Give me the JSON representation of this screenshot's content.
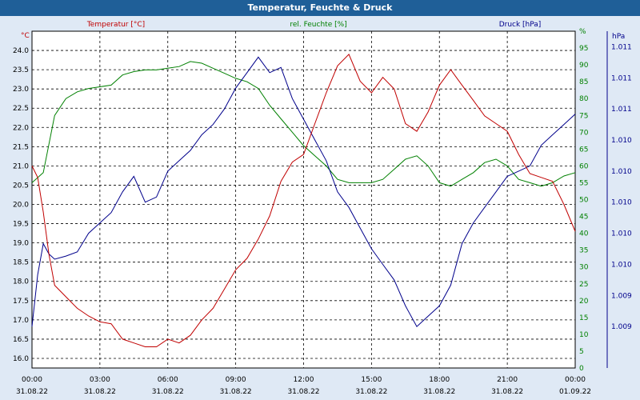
{
  "window": {
    "title": "Temperatur, Feuchte & Druck"
  },
  "colors": {
    "temp": "#c00000",
    "humidity": "#008000",
    "pressure": "#00008b",
    "grid": "#000000",
    "background": "#ffffff"
  },
  "chart_data": {
    "type": "line",
    "title": "Temperatur, Feuchte & Druck",
    "grid": true,
    "x_range": [
      "31.08.22 00:00",
      "01.09.22 00:00"
    ],
    "x_ticks": [
      {
        "time": "00:00",
        "date": "31.08.22"
      },
      {
        "time": "03:00",
        "date": "31.08.22"
      },
      {
        "time": "06:00",
        "date": "31.08.22"
      },
      {
        "time": "09:00",
        "date": "31.08.22"
      },
      {
        "time": "12:00",
        "date": "31.08.22"
      },
      {
        "time": "15:00",
        "date": "31.08.22"
      },
      {
        "time": "18:00",
        "date": "31.08.22"
      },
      {
        "time": "21:00",
        "date": "31.08.22"
      },
      {
        "time": "00:00",
        "date": "01.09.22"
      }
    ],
    "axes": {
      "temperature": {
        "unit": "°C",
        "min": 15.75,
        "max": 24.5,
        "ticks": [
          "16.0",
          "16.5",
          "17.0",
          "17.5",
          "18.0",
          "18.5",
          "19.0",
          "19.5",
          "20.0",
          "20.5",
          "21.0",
          "21.5",
          "22.0",
          "22.5",
          "23.0",
          "23.5",
          "24.0"
        ]
      },
      "humidity": {
        "unit": "%",
        "min": 0,
        "max": 100,
        "ticks": [
          "0",
          "5",
          "10",
          "15",
          "20",
          "25",
          "30",
          "35",
          "40",
          "45",
          "50",
          "55",
          "60",
          "65",
          "70",
          "75",
          "80",
          "85",
          "90",
          "95",
          "%"
        ]
      },
      "pressure": {
        "unit": "hPa",
        "min": 1008.6,
        "max": 1011.85,
        "ticks": [
          {
            "value": 1009.0,
            "label": "1.009"
          },
          {
            "value": 1009.3,
            "label": "1.009"
          },
          {
            "value": 1009.6,
            "label": "1.010"
          },
          {
            "value": 1009.9,
            "label": "1.010"
          },
          {
            "value": 1010.2,
            "label": "1.010"
          },
          {
            "value": 1010.5,
            "label": "1.010"
          },
          {
            "value": 1010.8,
            "label": "1.010"
          },
          {
            "value": 1011.1,
            "label": "1.011"
          },
          {
            "value": 1011.4,
            "label": "1.011"
          },
          {
            "value": 1011.7,
            "label": "1.011"
          }
        ]
      }
    },
    "series": [
      {
        "name": "Temperatur [°C]",
        "axis": "temperature",
        "x": [
          0,
          0.25,
          0.5,
          0.75,
          1,
          1.5,
          2,
          2.5,
          3,
          3.5,
          4,
          4.5,
          5,
          5.5,
          6,
          6.5,
          7,
          7.5,
          8,
          8.5,
          9,
          9.5,
          10,
          10.5,
          11,
          11.5,
          12,
          12.5,
          13,
          13.5,
          14,
          14.5,
          15,
          15.5,
          16,
          16.5,
          17,
          17.5,
          18,
          18.5,
          19,
          19.5,
          20,
          20.5,
          21,
          21.5,
          22,
          22.5,
          23,
          23.5,
          24
        ],
        "y": [
          21.0,
          20.7,
          19.8,
          18.7,
          17.9,
          17.6,
          17.3,
          17.1,
          16.95,
          16.9,
          16.5,
          16.4,
          16.3,
          16.3,
          16.5,
          16.4,
          16.6,
          17.0,
          17.3,
          17.8,
          18.3,
          18.6,
          19.1,
          19.7,
          20.6,
          21.1,
          21.3,
          22.1,
          22.9,
          23.6,
          23.9,
          23.2,
          22.9,
          23.3,
          23.0,
          22.1,
          21.9,
          22.4,
          23.1,
          23.5,
          23.1,
          22.7,
          22.3,
          22.1,
          21.9,
          21.3,
          20.8,
          20.7,
          20.6,
          20.0,
          19.3
        ]
      },
      {
        "name": "rel. Feuchte [%]",
        "axis": "humidity",
        "x": [
          0,
          0.5,
          1,
          1.5,
          2,
          2.5,
          3,
          3.5,
          4,
          4.5,
          5,
          5.5,
          6,
          6.5,
          7,
          7.5,
          8,
          8.5,
          9,
          9.5,
          10,
          10.5,
          11,
          11.5,
          12,
          12.5,
          13,
          13.5,
          14,
          14.5,
          15,
          15.5,
          16,
          16.5,
          17,
          17.5,
          18,
          18.5,
          19,
          19.5,
          20,
          20.5,
          21,
          21.5,
          22,
          22.5,
          23,
          23.5,
          24
        ],
        "y": [
          55,
          58,
          75,
          80,
          82,
          83,
          83.5,
          84,
          87,
          88,
          88.5,
          88.5,
          89,
          89.5,
          91,
          90.5,
          89,
          87.5,
          86,
          85,
          83,
          78,
          74,
          70,
          66,
          63,
          60,
          56,
          55,
          55,
          55,
          56,
          59,
          62,
          63,
          60,
          55,
          54,
          56,
          58,
          61,
          62,
          60,
          56,
          55,
          54,
          55,
          57,
          58
        ]
      },
      {
        "name": "Druck [hPa]",
        "axis": "pressure",
        "x": [
          0,
          0.25,
          0.5,
          0.75,
          1,
          1.5,
          2,
          2.5,
          3,
          3.5,
          4,
          4.5,
          5,
          5.5,
          6,
          6.5,
          7,
          7.5,
          8,
          8.5,
          9,
          9.5,
          10,
          10.5,
          11,
          11.5,
          12,
          12.5,
          13,
          13.5,
          14,
          14.5,
          15,
          15.5,
          16,
          16.5,
          17,
          17.5,
          18,
          18.5,
          19,
          19.5,
          20,
          20.5,
          21,
          21.5,
          22,
          22.5,
          23,
          23.5,
          24
        ],
        "y": [
          1009.0,
          1009.5,
          1009.8,
          1009.7,
          1009.65,
          1009.68,
          1009.72,
          1009.9,
          1010.0,
          1010.1,
          1010.3,
          1010.45,
          1010.2,
          1010.25,
          1010.5,
          1010.6,
          1010.7,
          1010.85,
          1010.95,
          1011.1,
          1011.3,
          1011.45,
          1011.6,
          1011.45,
          1011.5,
          1011.2,
          1011.0,
          1010.8,
          1010.6,
          1010.3,
          1010.15,
          1009.95,
          1009.75,
          1009.6,
          1009.45,
          1009.2,
          1009.0,
          1009.1,
          1009.2,
          1009.4,
          1009.8,
          1010.0,
          1010.15,
          1010.3,
          1010.45,
          1010.5,
          1010.55,
          1010.75,
          1010.85,
          1010.95,
          1011.05
        ]
      }
    ]
  }
}
